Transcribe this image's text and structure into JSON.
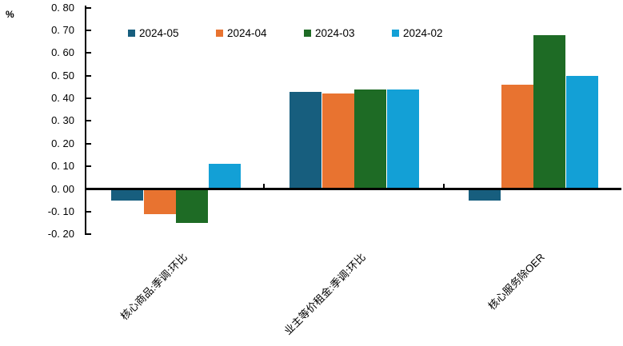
{
  "chart": {
    "y_tick_labels": [
      "0. 80",
      "0. 70",
      "0. 60",
      "0. 50",
      "0. 40",
      "0. 30",
      "0. 20",
      "0. 10",
      "0. 00",
      "-0. 10",
      "-0. 20"
    ]
  },
  "chart_data": {
    "type": "bar",
    "title": "",
    "xlabel": "",
    "ylabel": "%",
    "ylim": [
      -0.2,
      0.8
    ],
    "ytick_step": 0.1,
    "grid": false,
    "legend_position": "top",
    "categories": [
      "核心商品:季调:环比",
      "业主等价租金:季调:环比",
      "核心服务除OER"
    ],
    "series": [
      {
        "name": "2024-05",
        "color": "#175E7E",
        "values": [
          -0.05,
          0.43,
          -0.05
        ]
      },
      {
        "name": "2024-04",
        "color": "#E87330",
        "values": [
          -0.11,
          0.42,
          0.46
        ]
      },
      {
        "name": "2024-03",
        "color": "#1E6B25",
        "values": [
          -0.15,
          0.44,
          0.68
        ]
      },
      {
        "name": "2024-02",
        "color": "#13A0D6",
        "values": [
          0.11,
          0.44,
          0.5
        ]
      }
    ],
    "axis_color": "#000000",
    "text_color": "#000000",
    "background_color": "#FFFFFF"
  }
}
